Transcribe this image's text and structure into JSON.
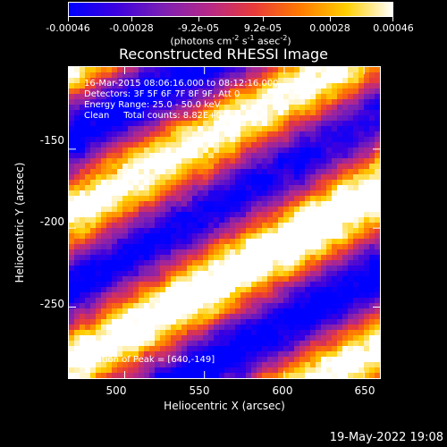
{
  "colorbar": {
    "tick_labels": [
      "-0.00046",
      "-0.00028",
      "-9.2e-05",
      "9.2e-05",
      "0.00028",
      "0.00046"
    ],
    "tick_values": [
      -0.00046,
      -0.00028,
      -9.2e-05,
      9.2e-05,
      0.00028,
      0.00046
    ],
    "range": [
      -0.00046,
      0.00046
    ],
    "units_text": "(photons cm",
    "units_sup1": "-2",
    "units_mid1": " s",
    "units_sup2": "-1",
    "units_mid2": " asec",
    "units_sup3": "-2",
    "units_end": ")"
  },
  "title": "Reconstructed RHESSI Image",
  "info": {
    "time_range": "16-Mar-2015 08:06:16.000 to 08:12:16.000",
    "detectors": "Detectors: 3F 5F 6F 7F 8F 9F, Att 0",
    "energy": "Energy Range: 25.0 - 50.0 keV",
    "clean": "Clean     Total counts: 8.82E+03",
    "peak": "Position of Peak = [640,-149]"
  },
  "axes": {
    "xlabel": "Heliocentric X (arcsec)",
    "ylabel": "Heliocentric Y (arcsec)",
    "xticks": [
      500,
      550,
      600,
      650
    ],
    "yticks": [
      -150,
      -200,
      -250
    ],
    "xlim": [
      465,
      660
    ],
    "ylim": [
      -295,
      -98
    ]
  },
  "timestamp": "19-May-2022 19:08",
  "colors": {
    "background": "#000000",
    "foreground": "#ffffff",
    "colormap": [
      "#0000ff",
      "#3a00e0",
      "#7a1fb5",
      "#b4288a",
      "#e83a3a",
      "#ff7a00",
      "#ffcf00",
      "#ffffff"
    ]
  }
}
